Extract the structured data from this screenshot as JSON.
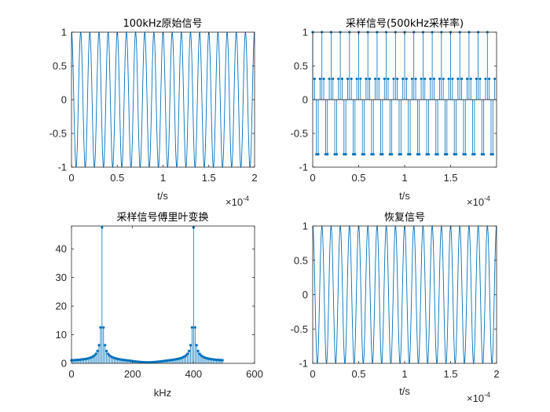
{
  "figure": {
    "panel1": {
      "title": "100kHz原始信号",
      "xlabel": "t/s",
      "x_multiplier": "×10",
      "x_multiplier_exp": "-4"
    },
    "panel2": {
      "title": "采样信号(500kHz采样率)",
      "xlabel": "t/s",
      "x_multiplier": "×10",
      "x_multiplier_exp": "-4"
    },
    "panel3": {
      "title": "采样信号傅里叶变换",
      "xlabel": "kHz"
    },
    "panel4": {
      "title": "恢复信号",
      "xlabel": "t/s",
      "x_multiplier": "×10",
      "x_multiplier_exp": "-4"
    }
  },
  "colors": {
    "series": "#0072BD",
    "axes": "#262626"
  },
  "chart_data": [
    {
      "type": "line",
      "title": "100kHz原始信号",
      "xlabel": "t/s",
      "x_scale_note": "×10^-4",
      "xlim": [
        0,
        0.0002
      ],
      "ylim": [
        -1,
        1
      ],
      "xticks": [
        0,
        0.5,
        1,
        1.5,
        2
      ],
      "yticks": [
        -1,
        -0.5,
        0,
        0.5,
        1
      ],
      "series": [
        {
          "function": "cos(2*pi*100000*t)",
          "frequency_hz": 100000,
          "amplitude": 1,
          "cycles": 20
        }
      ]
    },
    {
      "type": "stem",
      "title": "采样信号(500kHz采样率)",
      "xlabel": "t/s",
      "x_scale_note": "×10^-4",
      "xlim": [
        0,
        0.0002
      ],
      "ylim": [
        -1,
        1
      ],
      "xticks": [
        0,
        0.5,
        1,
        1.5
      ],
      "yticks": [
        -1,
        -0.5,
        0,
        0.5,
        1
      ],
      "sample_rate_hz": 500000,
      "samples": 100,
      "series": [
        {
          "pattern": [
            1,
            0.309,
            -0.809,
            -0.809,
            0.309
          ],
          "period_samples": 5
        }
      ]
    },
    {
      "type": "stem",
      "title": "采样信号傅里叶变换",
      "xlabel": "kHz",
      "xlim": [
        0,
        600
      ],
      "ylim": [
        0,
        48
      ],
      "xticks": [
        0,
        200,
        400,
        600
      ],
      "yticks": [
        0,
        10,
        20,
        30,
        40
      ],
      "peaks": [
        {
          "x": 100,
          "y": 47.5
        },
        {
          "x": 400,
          "y": 47.5
        }
      ],
      "series": [
        {
          "x_range": [
            0,
            495
          ],
          "x_step": 5
        }
      ]
    },
    {
      "type": "line",
      "title": "恢复信号",
      "xlabel": "t/s",
      "x_scale_note": "×10^-4",
      "xlim": [
        0,
        0.0002
      ],
      "ylim": [
        -1,
        1
      ],
      "xticks": [
        0,
        0.5,
        1,
        1.5,
        2
      ],
      "yticks": [
        -1,
        -0.5,
        0,
        0.5,
        1
      ],
      "series": [
        {
          "function": "cos(2*pi*100000*t)",
          "frequency_hz": 100000,
          "amplitude": 1,
          "cycles": 20
        }
      ]
    }
  ]
}
